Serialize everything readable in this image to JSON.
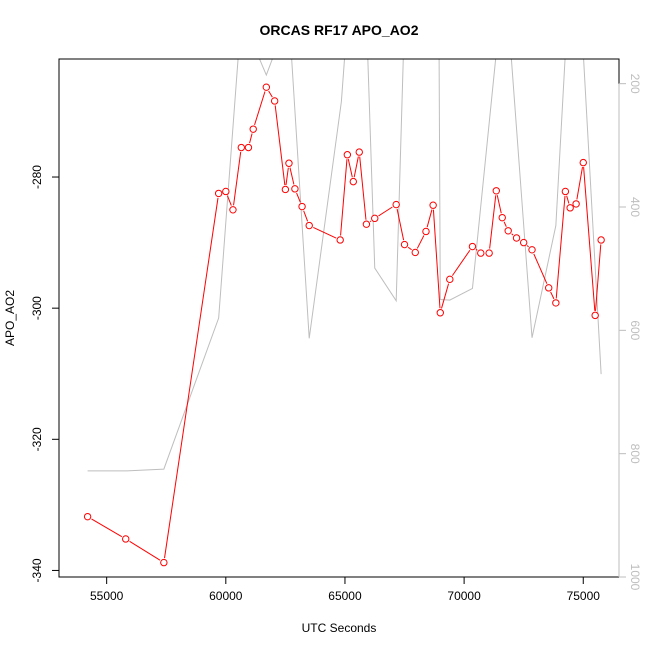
{
  "chart_data": {
    "type": "line",
    "title": "ORCAS RF17 APO_AO2",
    "xlabel": "UTC Seconds",
    "ylabel": "APO_AO2",
    "xlim": [
      53000,
      76500
    ],
    "ylim": [
      -341,
      -262
    ],
    "y2lim": [
      1000,
      160
    ],
    "x_ticks": [
      55000,
      60000,
      65000,
      70000,
      75000
    ],
    "y_ticks": [
      -340,
      -320,
      -300,
      -280
    ],
    "y2_ticks": [
      200,
      400,
      600,
      800,
      1000
    ],
    "x_tick_labels": [
      "55000",
      "60000",
      "65000",
      "70000",
      "75000"
    ],
    "y_tick_labels": [
      "-340",
      "-320",
      "-300",
      "-280"
    ],
    "y2_tick_labels": [
      "200",
      "400",
      "600",
      "800",
      "1000"
    ],
    "grid": false,
    "series": [
      {
        "color": "#ff0000",
        "marker": "circle",
        "axis": "left",
        "x": [
          54200,
          55800,
          57400,
          59700,
          60000,
          60300,
          60650,
          60950,
          61150,
          61700,
          62050,
          62500,
          62650,
          62900,
          63200,
          63500,
          64800,
          65100,
          65350,
          65600,
          65900,
          66250,
          67150,
          67500,
          67950,
          68400,
          68700,
          69000,
          69400,
          70350,
          70700,
          71050,
          71350,
          71600,
          71850,
          72200,
          72500,
          72850,
          73550,
          73850,
          74250,
          74450,
          74700,
          75000,
          75500,
          75750
        ],
        "y": [
          -331.8,
          -335.2,
          -338.8,
          -282.5,
          -282.2,
          -285.0,
          -275.5,
          -275.5,
          -272.7,
          -266.3,
          -268.4,
          -281.9,
          -277.9,
          -281.8,
          -284.5,
          -287.4,
          -289.6,
          -276.6,
          -280.7,
          -276.2,
          -287.2,
          -286.3,
          -284.2,
          -290.3,
          -291.5,
          -288.3,
          -284.3,
          -300.7,
          -295.6,
          -290.6,
          -291.6,
          -291.6,
          -282.1,
          -286.2,
          -288.2,
          -289.3,
          -290.0,
          -291.1,
          -296.9,
          -299.2,
          -282.2,
          -284.7,
          -284.1,
          -277.8,
          -301.1,
          -289.6
        ]
      },
      {
        "color": "#bebebe",
        "marker": "none",
        "axis": "right",
        "x": [
          54200,
          55800,
          57400,
          59700,
          60650,
          61700,
          62050,
          62650,
          63500,
          64850,
          65000,
          65900,
          66250,
          67150,
          67500,
          67950,
          68400,
          68950,
          69000,
          69400,
          70350,
          71350,
          71850,
          72850,
          73850,
          74250,
          74700,
          75000,
          75750
        ],
        "y": [
          828,
          828,
          825,
          580,
          90,
          186,
          150,
          90,
          613,
          229,
          150,
          90,
          499,
          552,
          90,
          90,
          90,
          150,
          550,
          551,
          532,
          150,
          90,
          612,
          430,
          150,
          90,
          150,
          671
        ]
      }
    ]
  }
}
